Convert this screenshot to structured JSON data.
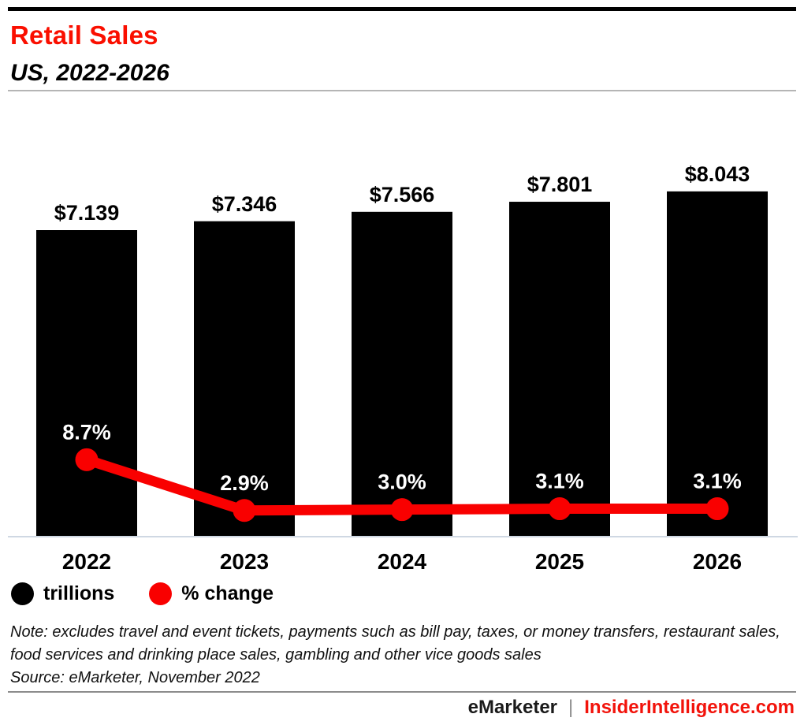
{
  "header": {
    "title": "Retail Sales",
    "subtitle": "US, 2022-2026"
  },
  "chart_data": {
    "type": "bar",
    "subtype": "bar-line-combo",
    "title": "Retail Sales",
    "subtitle": "US, 2022-2026",
    "categories": [
      "2022",
      "2023",
      "2024",
      "2025",
      "2026"
    ],
    "series": [
      {
        "name": "trillions",
        "type": "bar",
        "color": "#000000",
        "values": [
          7.139,
          7.346,
          7.566,
          7.801,
          8.043
        ],
        "labels": [
          "$7.139",
          "$7.346",
          "$7.566",
          "$7.801",
          "$8.043"
        ]
      },
      {
        "name": "% change",
        "type": "line",
        "color": "#f90000",
        "values": [
          8.7,
          2.9,
          3.0,
          3.1,
          3.1
        ],
        "labels": [
          "8.7%",
          "2.9%",
          "3.0%",
          "3.1%",
          "3.1%"
        ]
      }
    ],
    "bar_axis_range": [
      0,
      9.2
    ],
    "line_axis_range": [
      0,
      45
    ],
    "grid": false,
    "legend_position": "bottom-left",
    "legend": [
      {
        "label": "trillions",
        "color": "#000000"
      },
      {
        "label": "% change",
        "color": "#f90000"
      }
    ]
  },
  "footnote": {
    "note_line1": "Note: excludes travel and event tickets, payments such as bill pay, taxes, or money transfers,",
    "note_line2": "restaurant sales, food services and drinking place sales, gambling and other vice goods sales",
    "source": "Source: eMarketer, November 2022"
  },
  "footer": {
    "brand": "eMarketer",
    "separator": "|",
    "site": "InsiderIntelligence.com"
  },
  "colors": {
    "title_red": "#fa0f00",
    "line_red": "#f90000",
    "bar_black": "#000000",
    "axis_baseline": "#cfd8e3",
    "header_divider": "#b5b5b5",
    "footer_rule": "#8c8c8c",
    "footer_site_red": "#f2130b"
  }
}
